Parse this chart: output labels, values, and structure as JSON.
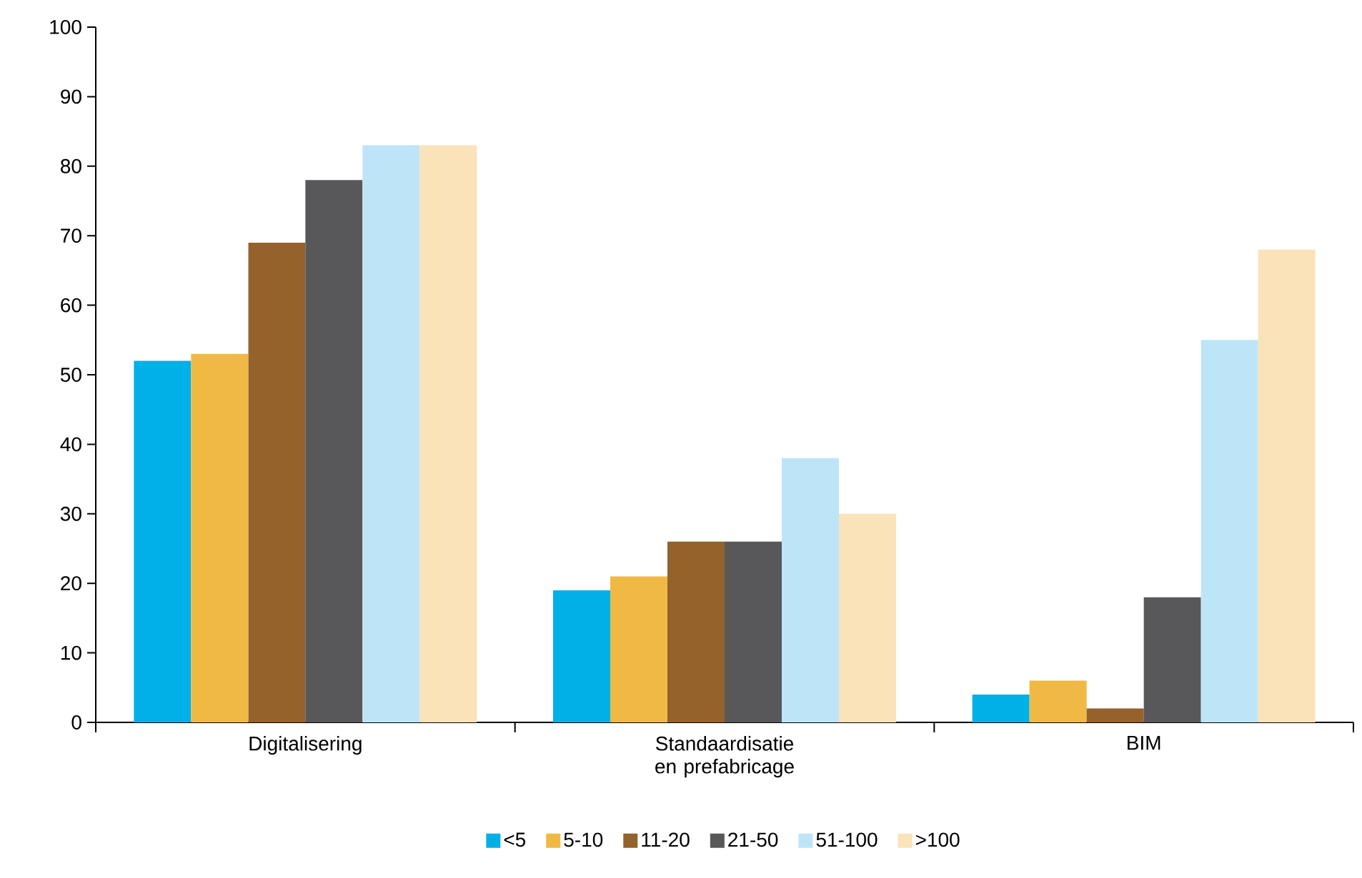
{
  "chart_data": {
    "type": "bar",
    "categories": [
      "Digitalisering",
      "Standaardisatie en prefabricage",
      "BIM"
    ],
    "series": [
      {
        "name": "<5",
        "color": "#00b0e6",
        "values": [
          52,
          19,
          4
        ]
      },
      {
        "name": "5-10",
        "color": "#f0b944",
        "values": [
          53,
          21,
          6
        ]
      },
      {
        "name": "11-20",
        "color": "#94622a",
        "values": [
          69,
          26,
          2
        ]
      },
      {
        "name": "21-50",
        "color": "#58585a",
        "values": [
          78,
          26,
          18
        ]
      },
      {
        "name": "51-100",
        "color": "#bde5f7",
        "values": [
          83,
          38,
          55
        ]
      },
      {
        "name": ">100",
        "color": "#fae3b8",
        "values": [
          83,
          30,
          68
        ]
      }
    ],
    "ylim": [
      0,
      100
    ],
    "yticks": [
      0,
      10,
      20,
      30,
      40,
      50,
      60,
      70,
      80,
      90,
      100
    ],
    "legend": "bottom"
  }
}
